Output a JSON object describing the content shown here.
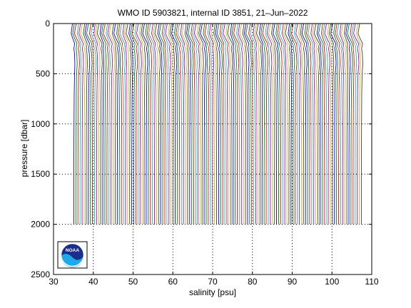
{
  "chart_data": {
    "type": "line",
    "title": "WMO ID 5903821, internal ID 3851, 21–Jun–2022",
    "xlabel": "salinity [psu]",
    "ylabel": "pressure [dbar]",
    "xlim": [
      30,
      110
    ],
    "ylim": [
      0,
      2500
    ],
    "y_reversed": true,
    "grid": "dotted",
    "xticks": [
      30,
      40,
      50,
      60,
      70,
      80,
      90,
      100,
      110
    ],
    "yticks": [
      0,
      500,
      1000,
      1500,
      2000,
      2500
    ],
    "offset_profiles": {
      "description_note": null,
      "count": 140,
      "start_salinity": 35.0,
      "step": 0.52,
      "pressure": [
        0,
        100,
        150,
        200,
        250,
        300,
        400,
        500,
        700,
        1000,
        1300,
        1600,
        2000
      ],
      "salinity_anomaly": [
        -0.3,
        -0.7,
        -0.2,
        0.4,
        0.15,
        0.35,
        0.45,
        0.3,
        0.2,
        0.15,
        0.12,
        0.1,
        0.1
      ],
      "colors": [
        "#0000ff",
        "#008000",
        "#ff0000",
        "#00bfbf",
        "#bf00bf",
        "#bfbf00",
        "#404040"
      ]
    },
    "logo": {
      "text": "NOAA",
      "type": "noaa-logo"
    }
  }
}
